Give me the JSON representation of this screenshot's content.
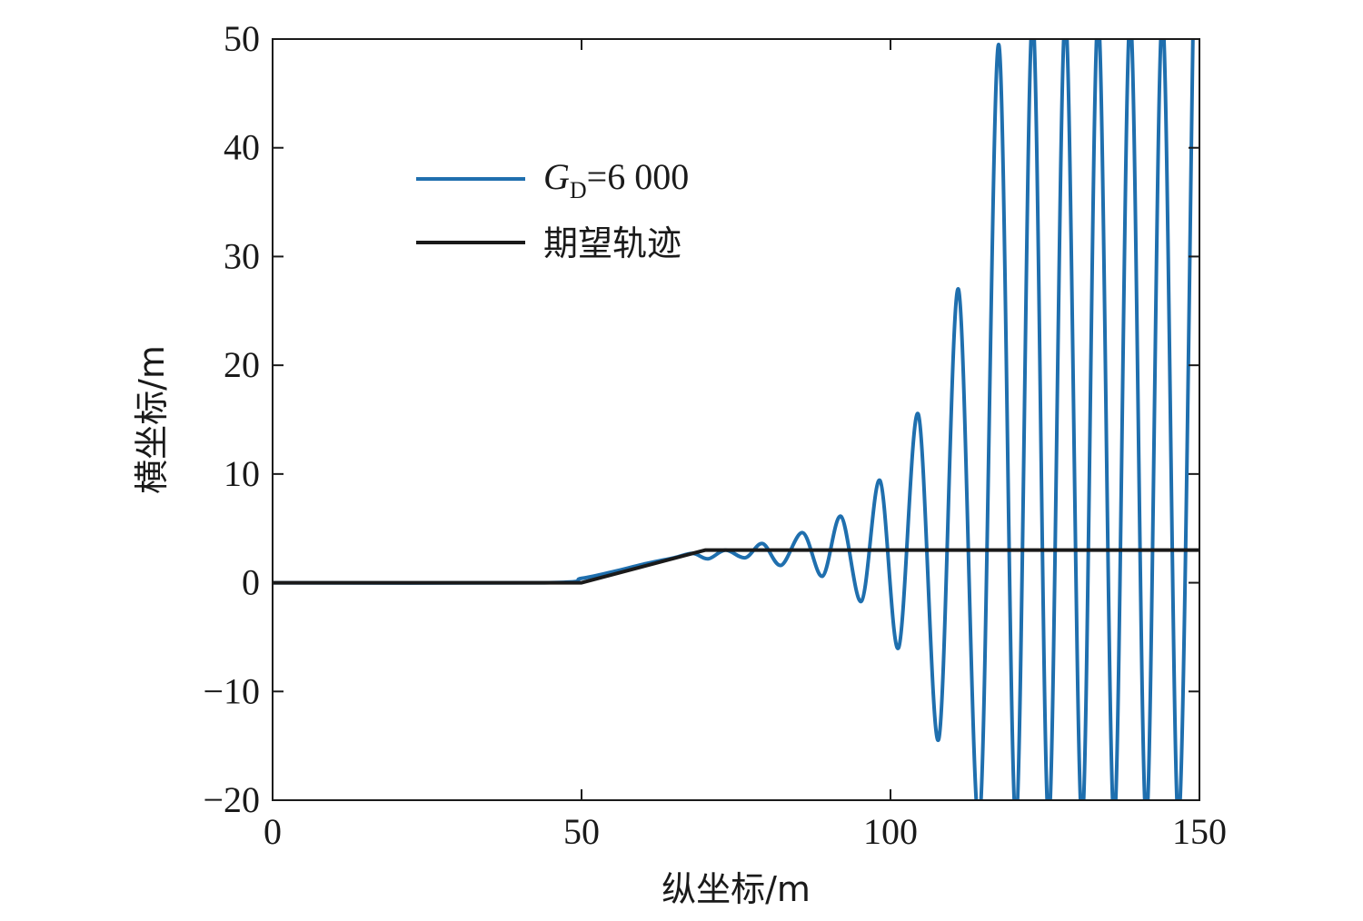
{
  "chart_data": {
    "type": "line",
    "xlabel": "纵坐标/m",
    "ylabel": "横坐标/m",
    "xlim": [
      0,
      150
    ],
    "ylim": [
      -20,
      50
    ],
    "xticks": [
      0,
      50,
      100,
      150
    ],
    "yticks": [
      -20,
      -10,
      0,
      10,
      20,
      30,
      40,
      50
    ],
    "xtick_labels": [
      "0",
      "50",
      "100",
      "150"
    ],
    "ytick_labels": [
      "−20",
      "−10",
      "0",
      "10",
      "20",
      "30",
      "40",
      "50"
    ],
    "grid": false,
    "legend_position": "upper-left",
    "series": [
      {
        "name": "G_D=6 000",
        "legend_main": "G",
        "legend_sub": "D",
        "legend_rest": "=6 000",
        "color": "#1f6fae",
        "x": [
          0,
          44,
          50,
          55,
          60,
          65,
          68,
          70.5,
          73.3,
          76.5,
          79.3,
          82.3,
          85.8,
          89,
          92,
          95.3,
          98.3,
          101.3,
          104.5,
          107.8,
          111.0,
          114.4,
          117.5,
          120.3,
          123.0,
          125.6,
          128.3,
          131.0,
          133.6,
          136.2,
          138.8,
          141.4,
          144.0,
          146.6,
          149.0
        ],
        "y": [
          0,
          0,
          0.4,
          1.0,
          1.7,
          2.3,
          2.7,
          2.2,
          3.0,
          2.3,
          3.6,
          1.6,
          4.6,
          0.6,
          6.1,
          -1.7,
          9.4,
          -6.0,
          15.5,
          -14.4,
          27.0,
          -22.0,
          49.5,
          -22.0,
          52.0,
          -22.0,
          52.0,
          -22.0,
          52.0,
          -22.0,
          52.0,
          -22.0,
          52.0,
          -22.0,
          52.0
        ]
      },
      {
        "name": "期望轨迹",
        "color": "#1a1a1a",
        "x": [
          0,
          50,
          70,
          150
        ],
        "y": [
          0,
          0,
          3,
          3
        ]
      }
    ]
  }
}
